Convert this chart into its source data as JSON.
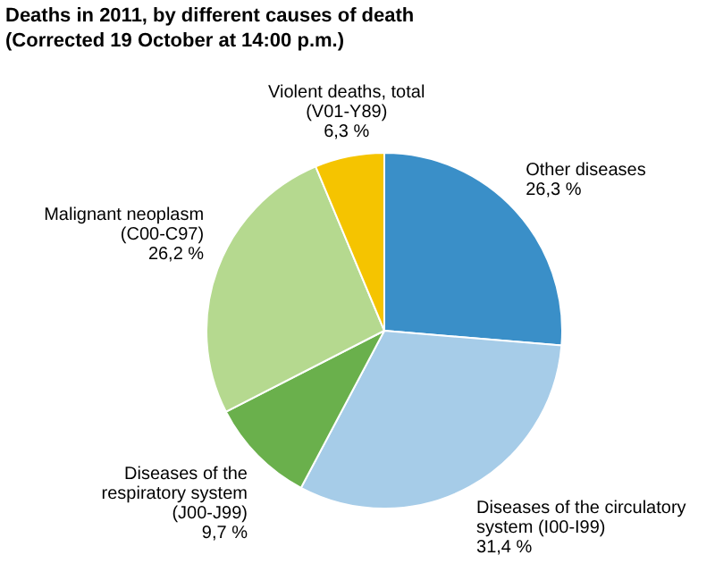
{
  "chart_data": {
    "type": "pie",
    "title": "Deaths in 2011, by different causes of death",
    "subtitle": "(Corrected 19 October at 14:00 p.m.)",
    "categories": [
      "Other diseases",
      "Diseases of the circulatory system (I00-I99)",
      "Diseases of the respiratory system (J00-J99)",
      "Malignant neoplasm (C00-C97)",
      "Violent deaths, total (V01-Y89)"
    ],
    "values": [
      26.3,
      31.4,
      9.7,
      26.2,
      6.3
    ],
    "value_labels": [
      "26,3 %",
      "31,4 %",
      "9,7 %",
      "26,2 %",
      "6,3 %"
    ],
    "colors": [
      "#3a8fc8",
      "#a6cce8",
      "#6ab04c",
      "#b5d98f",
      "#f5c400"
    ],
    "legend": false
  }
}
